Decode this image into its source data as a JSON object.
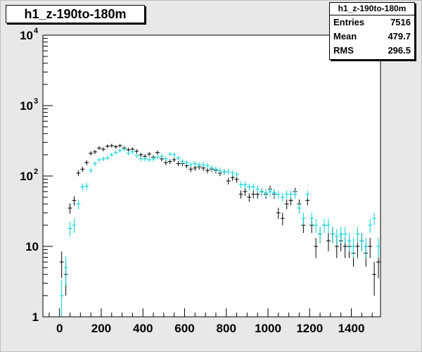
{
  "chart_data": {
    "type": "scatter",
    "title": "h1_z-190to-180m",
    "xlabel": "",
    "ylabel": "",
    "xlim": [
      -80,
      1540
    ],
    "ylim": [
      1,
      10000
    ],
    "y_scale": "log",
    "grid": false,
    "legend": "none",
    "x_ticks": [
      0,
      200,
      400,
      600,
      800,
      1000,
      1200,
      1400
    ],
    "y_ticks": [
      {
        "value": 1,
        "label": "1",
        "exp": ""
      },
      {
        "value": 10,
        "label": "10",
        "exp": ""
      },
      {
        "value": 100,
        "label": "10",
        "exp": "2"
      },
      {
        "value": 1000,
        "label": "10",
        "exp": "3"
      },
      {
        "value": 10000,
        "label": "10",
        "exp": "4"
      }
    ],
    "bin_width": 20,
    "series": [
      {
        "color": "#000000",
        "x": [
          10,
          30,
          50,
          70,
          90,
          110,
          130,
          150,
          170,
          190,
          210,
          230,
          250,
          270,
          290,
          310,
          330,
          350,
          370,
          390,
          410,
          430,
          450,
          470,
          490,
          510,
          530,
          550,
          570,
          590,
          610,
          630,
          650,
          670,
          690,
          710,
          730,
          750,
          770,
          790,
          810,
          830,
          850,
          870,
          890,
          910,
          930,
          950,
          970,
          990,
          1010,
          1030,
          1050,
          1070,
          1090,
          1110,
          1130,
          1150,
          1170,
          1190,
          1210,
          1230,
          1250,
          1270,
          1290,
          1310,
          1330,
          1350,
          1370,
          1390,
          1410,
          1430,
          1450,
          1470,
          1490,
          1510,
          1530
        ],
        "y": [
          6,
          4,
          35,
          45,
          110,
          125,
          155,
          210,
          220,
          250,
          240,
          265,
          270,
          260,
          270,
          250,
          235,
          240,
          225,
          200,
          190,
          205,
          185,
          215,
          175,
          155,
          160,
          170,
          150,
          150,
          140,
          125,
          130,
          135,
          130,
          120,
          125,
          120,
          110,
          115,
          85,
          95,
          90,
          55,
          60,
          50,
          55,
          55,
          60,
          55,
          65,
          55,
          30,
          25,
          40,
          45,
          60,
          40,
          20,
          45,
          20,
          10,
          15,
          20,
          12,
          15,
          10,
          12,
          10,
          10,
          8,
          10,
          12,
          8,
          10,
          4,
          6
        ]
      },
      {
        "color": "#00d4d4",
        "x": [
          10,
          30,
          50,
          70,
          90,
          110,
          130,
          150,
          170,
          190,
          210,
          230,
          250,
          270,
          290,
          310,
          330,
          350,
          370,
          390,
          410,
          430,
          450,
          470,
          490,
          510,
          530,
          550,
          570,
          590,
          610,
          630,
          650,
          670,
          690,
          710,
          730,
          750,
          770,
          790,
          810,
          830,
          850,
          870,
          890,
          910,
          930,
          950,
          970,
          990,
          1010,
          1030,
          1050,
          1070,
          1090,
          1110,
          1130,
          1150,
          1170,
          1190,
          1210,
          1230,
          1250,
          1270,
          1290,
          1310,
          1330,
          1350,
          1370,
          1390,
          1410,
          1430,
          1450,
          1470,
          1490,
          1510,
          1530
        ],
        "y": [
          2,
          5,
          18,
          20,
          40,
          70,
          72,
          120,
          150,
          170,
          175,
          180,
          200,
          215,
          230,
          240,
          210,
          220,
          195,
          175,
          175,
          170,
          175,
          185,
          190,
          175,
          205,
          200,
          180,
          160,
          155,
          145,
          150,
          145,
          145,
          140,
          130,
          125,
          120,
          115,
          115,
          110,
          105,
          75,
          75,
          70,
          70,
          65,
          60,
          58,
          60,
          58,
          55,
          50,
          55,
          55,
          55,
          35,
          25,
          55,
          25,
          20,
          15,
          20,
          20,
          15,
          14,
          15,
          15,
          12,
          10,
          15,
          12,
          10,
          20,
          25,
          10
        ]
      }
    ],
    "stats": {
      "title": "h1_z-190to-180m",
      "entries_label": "Entries",
      "entries_value": "7516",
      "mean_label": "Mean",
      "mean_value": "479.7",
      "rms_label": "RMS",
      "rms_value": "296.5"
    }
  }
}
